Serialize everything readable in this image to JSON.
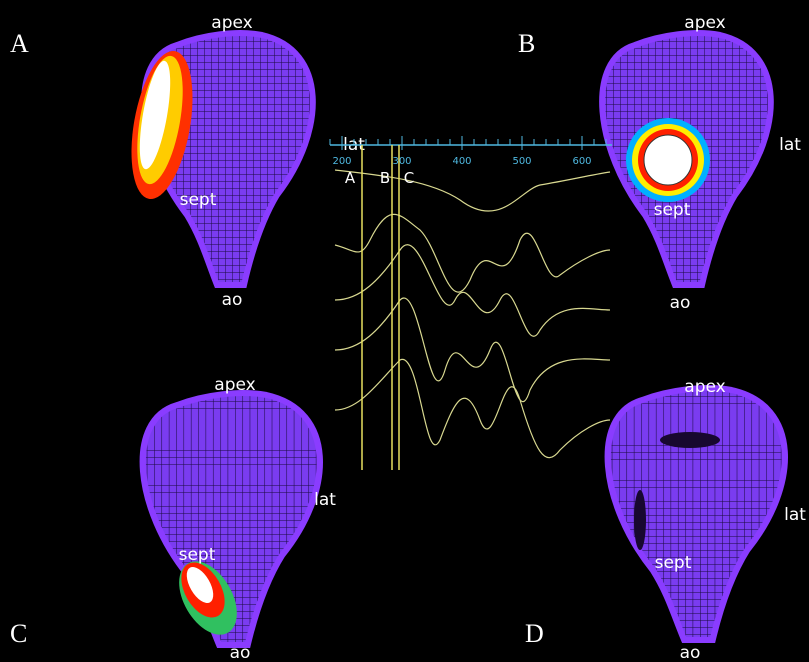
{
  "panels": [
    {
      "letter": "A",
      "apex": "apex",
      "lat": "lat",
      "sept": "sept",
      "ao": "ao"
    },
    {
      "letter": "B",
      "apex": "apex",
      "lat": "lat",
      "sept": "sept",
      "ao": "ao"
    },
    {
      "letter": "C",
      "apex": "apex",
      "lat": "lat",
      "sept": "sept",
      "ao": "ao"
    },
    {
      "letter": "D",
      "apex": "apex",
      "lat": "lat",
      "sept": "sept",
      "ao": "ao"
    }
  ],
  "traces": {
    "ticks": [
      200,
      300,
      400,
      500,
      600
    ],
    "markers": [
      "A",
      "B",
      "C"
    ]
  }
}
